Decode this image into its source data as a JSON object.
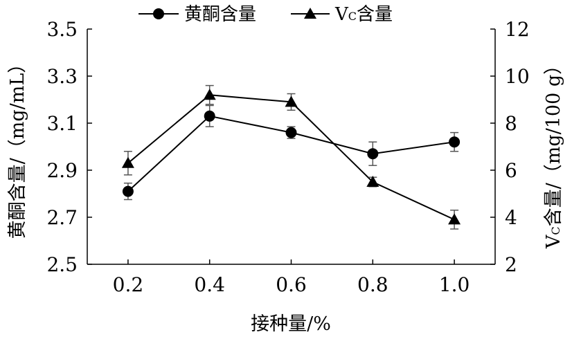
{
  "chart_data": {
    "type": "line",
    "title": "",
    "xlabel": "接种量/%",
    "ylabel_left": "黄酮含量/（mg/mL）",
    "ylabel_right": "Vc含量/（mg/100 g）",
    "x": [
      0.2,
      0.4,
      0.6,
      0.8,
      1.0
    ],
    "x_tick_labels": [
      "0.2",
      "0.4",
      "0.6",
      "0.8",
      "1.0"
    ],
    "x_range": [
      0.1,
      1.1
    ],
    "y_left_range": [
      2.5,
      3.5
    ],
    "y_left_ticks": [
      "2.5",
      "2.7",
      "2.9",
      "3.1",
      "3.3",
      "3.5"
    ],
    "y_right_range": [
      2,
      12
    ],
    "y_right_ticks": [
      "2",
      "4",
      "6",
      "8",
      "10",
      "12"
    ],
    "grid": false,
    "legend_position": "top",
    "series": [
      {
        "name": "黄酮含量",
        "axis": "left",
        "marker": "circle",
        "values": [
          2.81,
          3.13,
          3.06,
          2.97,
          3.02
        ],
        "errors": [
          0.035,
          0.045,
          0.025,
          0.05,
          0.04
        ]
      },
      {
        "name": "Vc含量",
        "name_main": "V",
        "name_sub": "C",
        "name_rest": "含量",
        "axis": "right",
        "marker": "triangle",
        "values": [
          6.3,
          9.2,
          8.9,
          5.5,
          3.9
        ],
        "errors": [
          0.5,
          0.4,
          0.35,
          0.2,
          0.4
        ]
      }
    ]
  }
}
